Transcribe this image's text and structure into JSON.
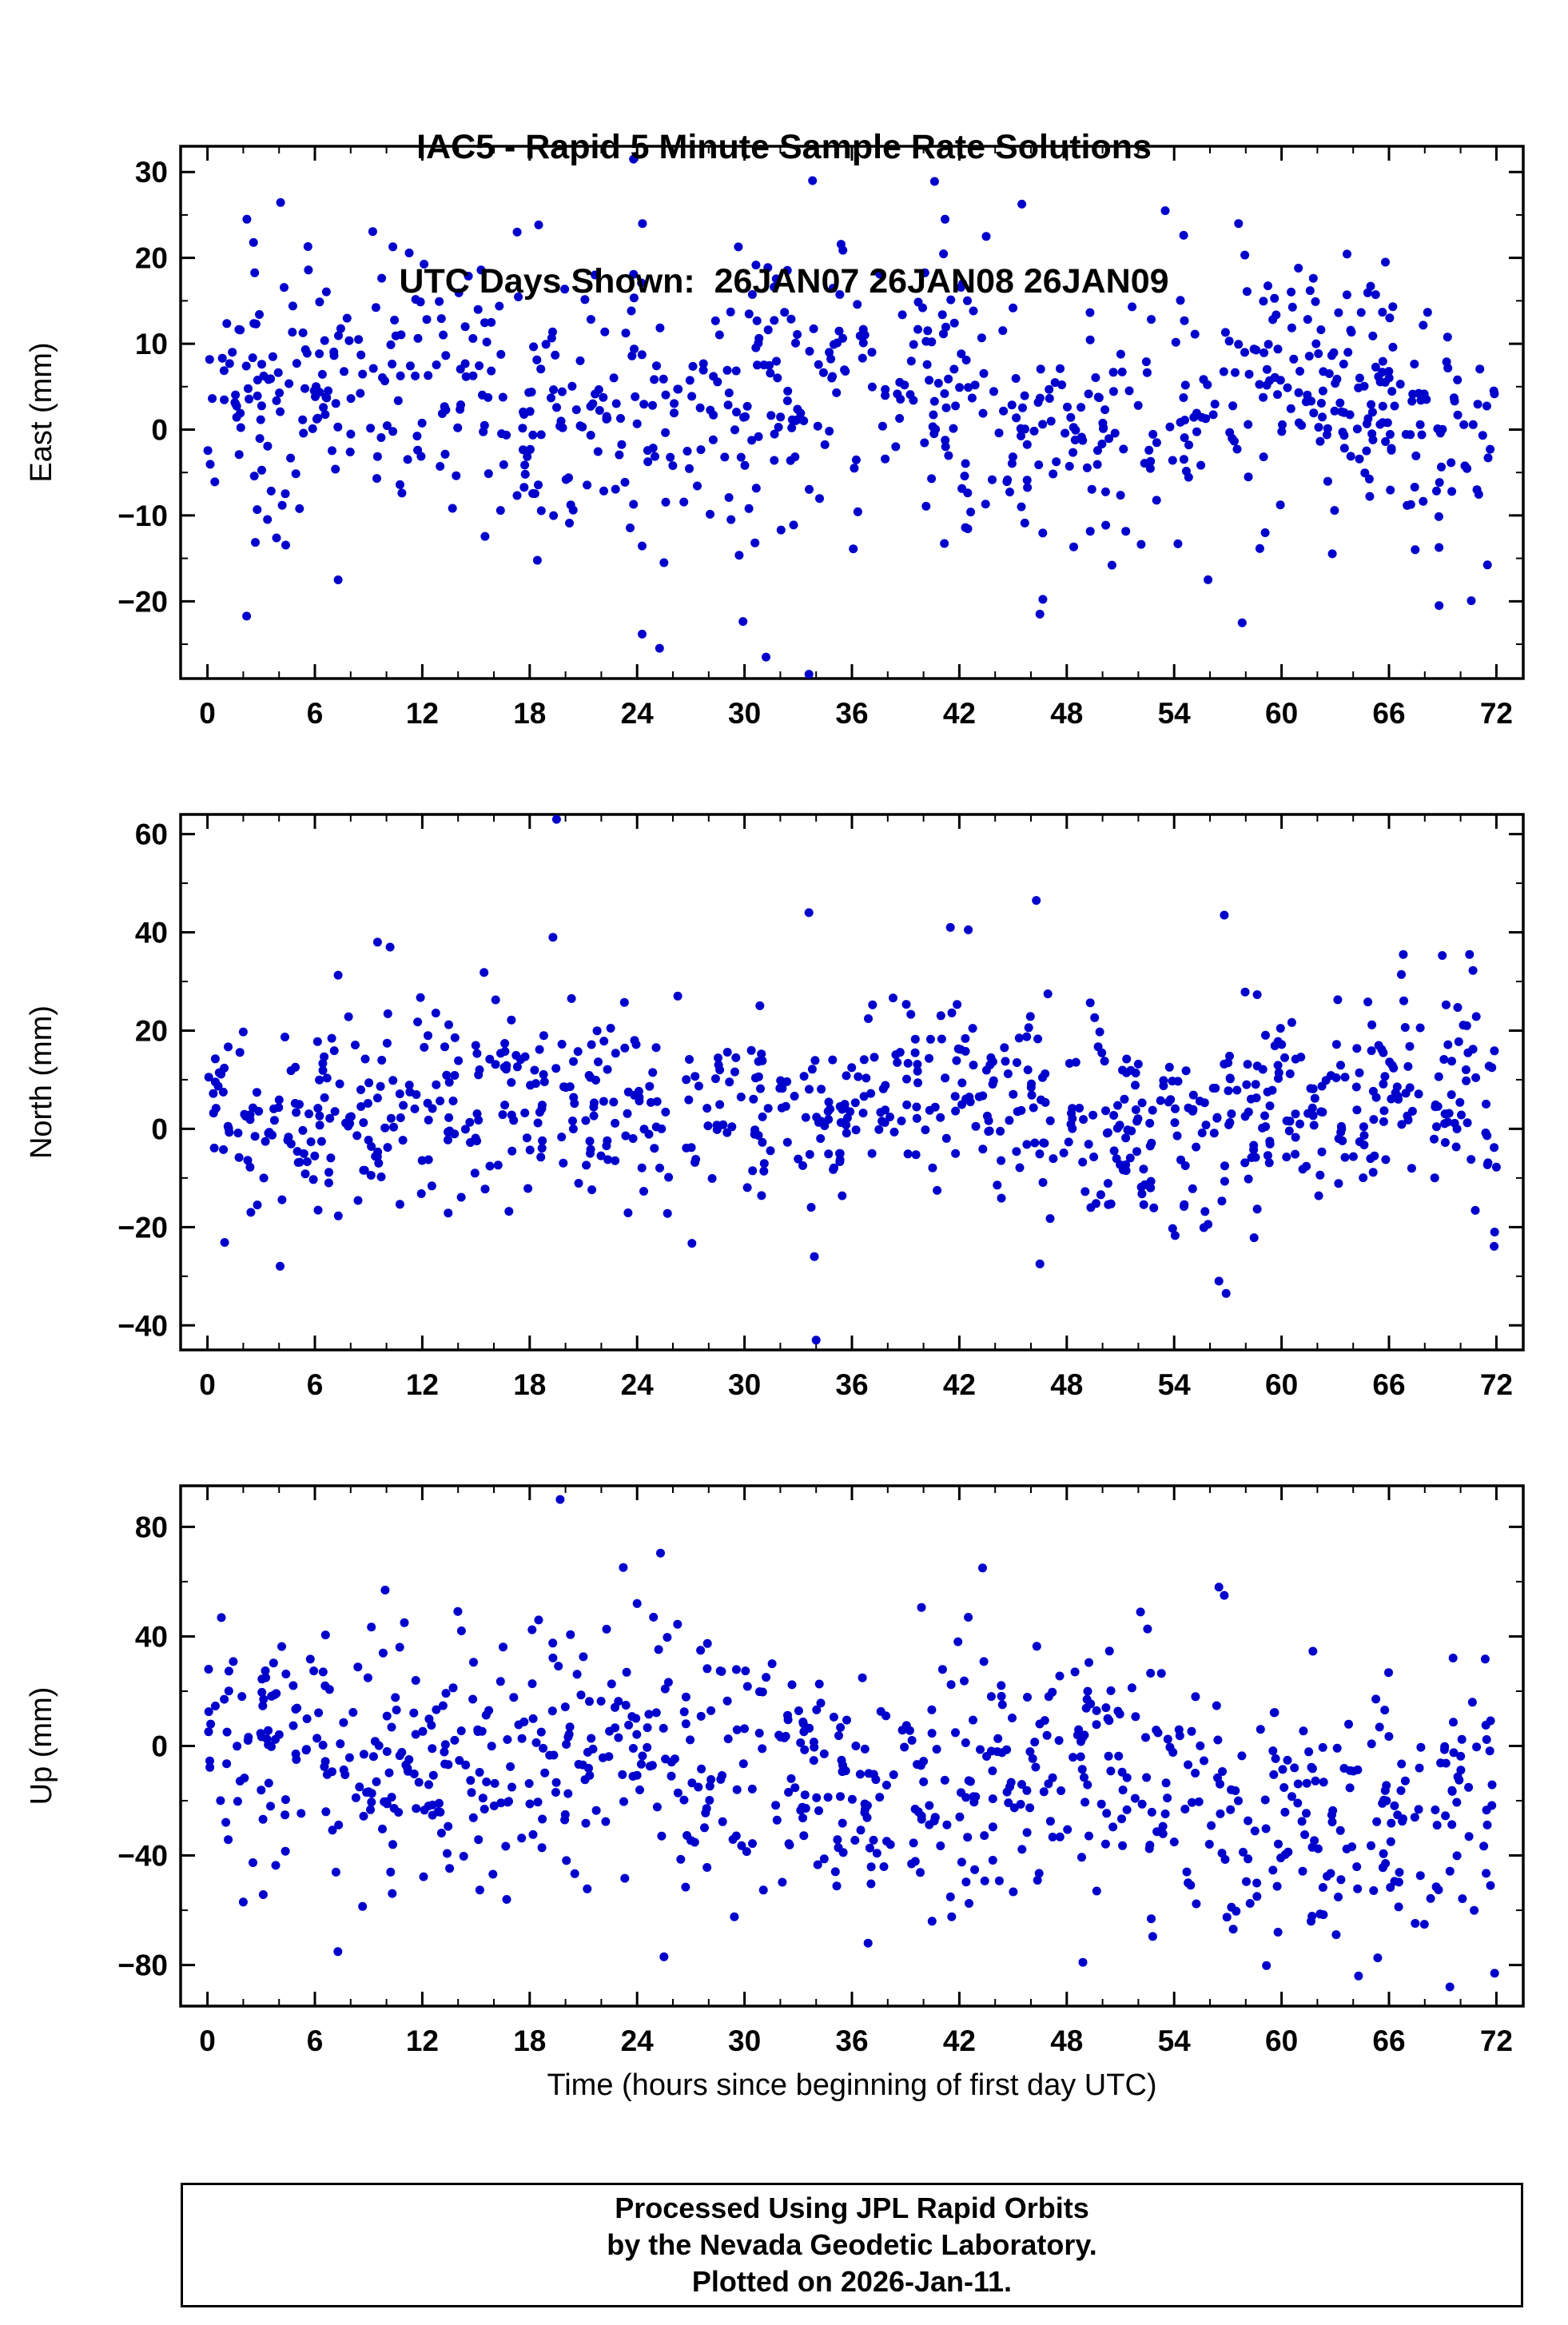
{
  "title": {
    "line1": "IAC5 - Rapid 5 Minute Sample Rate Solutions",
    "line2": "UTC Days Shown:  26JAN07 26JAN08 26JAN09"
  },
  "footer": {
    "lines": [
      "Processed Using JPL Rapid Orbits",
      "by the Nevada Geodetic Laboratory.",
      "Plotted on 2026-Jan-11."
    ]
  },
  "chart_data": {
    "type": "scatter",
    "title": "IAC5 - Rapid 5 Minute Sample Rate Solutions",
    "subtitle": "UTC Days Shown:  26JAN07 26JAN08 26JAN09",
    "xlabel": "Time (hours since beginning of first day UTC)",
    "grid": "off",
    "legend": "none",
    "marker": {
      "color": "#0000cd",
      "radius": 5.5
    },
    "x_axis": {
      "min": -1.5,
      "max": 73.5,
      "major_ticks": [
        0,
        6,
        12,
        18,
        24,
        30,
        36,
        42,
        48,
        54,
        60,
        66,
        72
      ],
      "minor_step": 2
    },
    "panels": [
      {
        "name": "east",
        "ylabel": "East (mm)",
        "ylim": [
          -29,
          33
        ],
        "major_ticks": [
          -20,
          -10,
          0,
          10,
          20,
          30
        ],
        "minor_step": 5,
        "points_spec": {
          "n": 800,
          "seed": 11,
          "mean": 3.5,
          "std": 7.5,
          "trend": -3,
          "diurnal_amp": 2.5
        },
        "outliers": [
          [
            23.8,
            31.5
          ],
          [
            33.8,
            29.0
          ],
          [
            2.2,
            24.5
          ],
          [
            17.3,
            23.0
          ],
          [
            24.3,
            24.0
          ],
          [
            41.2,
            24.5
          ],
          [
            53.5,
            25.5
          ],
          [
            57.6,
            24.0
          ],
          [
            65.8,
            19.5
          ],
          [
            31.2,
            -26.5
          ],
          [
            33.6,
            -28.5
          ],
          [
            46.5,
            -21.5
          ],
          [
            57.8,
            -22.5
          ],
          [
            68.8,
            -20.5
          ],
          [
            7.3,
            -17.5
          ],
          [
            25.5,
            -15.5
          ],
          [
            43.5,
            22.5
          ]
        ]
      },
      {
        "name": "north",
        "ylabel": "North (mm)",
        "ylim": [
          -45,
          64
        ],
        "major_ticks": [
          -40,
          -20,
          0,
          20,
          40,
          60
        ],
        "minor_step": 10,
        "points_spec": {
          "n": 800,
          "seed": 22,
          "mean": 4.5,
          "std": 10,
          "trend": 0,
          "diurnal_amp": 3
        },
        "outliers": [
          [
            19.5,
            63.0
          ],
          [
            46.3,
            46.5
          ],
          [
            56.8,
            43.5
          ],
          [
            33.6,
            44.0
          ],
          [
            41.5,
            41.0
          ],
          [
            42.5,
            40.5
          ],
          [
            9.5,
            38.0
          ],
          [
            19.3,
            39.0
          ],
          [
            66.8,
            35.5
          ],
          [
            70.5,
            35.5
          ],
          [
            34.0,
            -43.0
          ],
          [
            56.9,
            -33.5
          ],
          [
            56.5,
            -31.0
          ],
          [
            46.5,
            -27.5
          ],
          [
            33.9,
            -26.0
          ],
          [
            71.9,
            -21.0
          ],
          [
            10.2,
            37.0
          ]
        ]
      },
      {
        "name": "up",
        "ylabel": "Up (mm)",
        "ylim": [
          -95,
          95
        ],
        "major_ticks": [
          -80,
          -40,
          0,
          40,
          80
        ],
        "minor_step": 20,
        "points_spec": {
          "n": 800,
          "seed": 33,
          "mean": -10,
          "std": 24,
          "trend": -28,
          "diurnal_amp": 8
        },
        "outliers": [
          [
            19.7,
            90.0
          ],
          [
            43.3,
            65.0
          ],
          [
            56.5,
            58.0
          ],
          [
            24.0,
            52.0
          ],
          [
            56.8,
            55.0
          ],
          [
            42.5,
            47.0
          ],
          [
            11.0,
            45.0
          ],
          [
            18.5,
            46.0
          ],
          [
            25.5,
            -77.0
          ],
          [
            48.9,
            -79.0
          ],
          [
            64.3,
            -84.0
          ],
          [
            69.4,
            -88.0
          ],
          [
            71.9,
            -83.0
          ],
          [
            36.9,
            -72.0
          ],
          [
            59.8,
            -68.0
          ],
          [
            2.0,
            -57.0
          ]
        ]
      }
    ]
  }
}
